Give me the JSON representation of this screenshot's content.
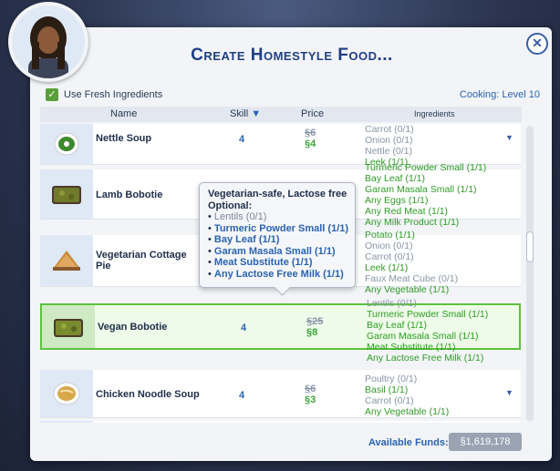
{
  "dialog": {
    "title": "Create Homestyle Food...",
    "close_icon": "close-icon"
  },
  "options": {
    "fresh_label": "Use Fresh Ingredients",
    "fresh_checked": true,
    "cooking_label": "Cooking:",
    "cooking_level": "Level 10"
  },
  "header": {
    "name": "Name",
    "skill": "Skill",
    "price": "Price",
    "ingredients": "Ingredients"
  },
  "rows": [
    {
      "name": "Nettle Soup",
      "skill": "4",
      "old_price": "6",
      "new_price": "4",
      "ingredients": [
        {
          "t": "Carrot (0/1)",
          "ok": false
        },
        {
          "t": "Onion (0/1)",
          "ok": false
        },
        {
          "t": "Nettle (0/1)",
          "ok": false
        },
        {
          "t": "Leek (1/1)",
          "ok": true
        }
      ]
    },
    {
      "name": "Lamb Bobotie",
      "skill": "",
      "old_price": "",
      "new_price": "",
      "ingredients": [
        {
          "t": "Turmeric Powder Small (1/1)",
          "ok": true
        },
        {
          "t": "Bay Leaf (1/1)",
          "ok": true
        },
        {
          "t": "Garam Masala Small (1/1)",
          "ok": true
        },
        {
          "t": "Any Eggs (1/1)",
          "ok": true
        },
        {
          "t": "Any Red Meat (1/1)",
          "ok": true
        },
        {
          "t": "Any Milk Product (1/1)",
          "ok": true
        }
      ]
    },
    {
      "name": "Vegetarian Cottage Pie",
      "skill": "",
      "old_price": "",
      "new_price": "",
      "ingredients": [
        {
          "t": "Potato (1/1)",
          "ok": true
        },
        {
          "t": "Onion (0/1)",
          "ok": false
        },
        {
          "t": "Carrot (0/1)",
          "ok": false
        },
        {
          "t": "Leek (1/1)",
          "ok": true
        },
        {
          "t": "Faux Meat Cube (0/1)",
          "ok": false
        },
        {
          "t": "Any Vegetable (1/1)",
          "ok": true
        }
      ]
    },
    {
      "name": "Vegan Bobotie",
      "skill": "4",
      "old_price": "25",
      "new_price": "8",
      "ingredients": [
        {
          "t": "Lentils (0/1)",
          "ok": false
        },
        {
          "t": "Turmeric Powder Small (1/1)",
          "ok": true
        },
        {
          "t": "Bay Leaf (1/1)",
          "ok": true
        },
        {
          "t": "Garam Masala Small (1/1)",
          "ok": true
        },
        {
          "t": "Meat Substitute (1/1)",
          "ok": true
        },
        {
          "t": "Any Lactose Free Milk (1/1)",
          "ok": true
        }
      ]
    },
    {
      "name": "Chicken Noodle Soup",
      "skill": "4",
      "old_price": "6",
      "new_price": "3",
      "ingredients": [
        {
          "t": "Poultry (0/1)",
          "ok": false
        },
        {
          "t": "Basil (1/1)",
          "ok": true
        },
        {
          "t": "Carrot (0/1)",
          "ok": false
        },
        {
          "t": "Any Vegetable (1/1)",
          "ok": true
        }
      ]
    }
  ],
  "tooltip": {
    "title": "Vegetarian-safe, Lactose free",
    "optional": "Optional:",
    "items": [
      {
        "t": "Lentils (0/1)",
        "ok": false
      },
      {
        "t": "Turmeric Powder Small (1/1)",
        "ok": true
      },
      {
        "t": "Bay Leaf (1/1)",
        "ok": true
      },
      {
        "t": "Garam Masala Small (1/1)",
        "ok": true
      },
      {
        "t": "Meat Substitute (1/1)",
        "ok": true
      },
      {
        "t": "Any Lactose Free Milk (1/1)",
        "ok": true
      }
    ]
  },
  "funds": {
    "label": "Available Funds:",
    "value": "1,619,178"
  },
  "colors": {
    "accent": "#203f86",
    "green": "#2e9c24",
    "selected_border": "#5cc33a"
  }
}
